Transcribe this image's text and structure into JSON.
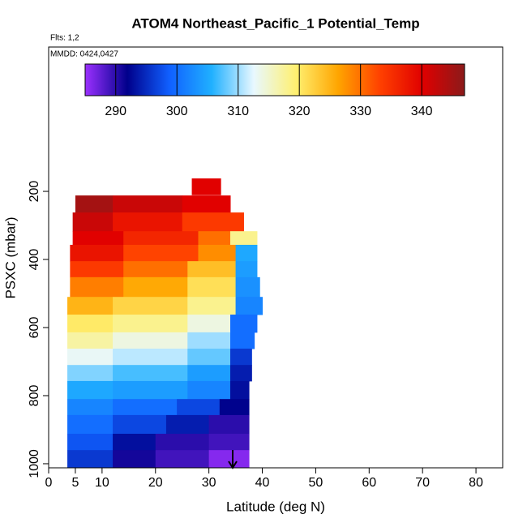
{
  "chart_data": {
    "type": "curtain",
    "title": "ATOM4 Northeast_Pacific_1 Potential_Temp",
    "flights_label": "Flts: 1,2",
    "dates_label": "MMDD: 0424,0427",
    "x_label": "Latitude (deg N)",
    "y_label": "PSXC (mbar)",
    "xlim": [
      0,
      85
    ],
    "xticks": [
      0,
      5,
      10,
      20,
      30,
      40,
      50,
      60,
      70,
      80
    ],
    "ylim": [
      1012,
      -224
    ],
    "yticks": [
      200,
      400,
      600,
      800,
      1000
    ],
    "colorbar": {
      "lim": [
        285,
        347
      ],
      "ticks": [
        290,
        300,
        310,
        320,
        330,
        340
      ],
      "colors": [
        "#9b30ff",
        "#00008b",
        "#1060ff",
        "#20b0ff",
        "#e8f8ff",
        "#fff070",
        "#ffa500",
        "#ff4000",
        "#e00000",
        "#8b1a1a"
      ]
    },
    "rows": [
      {
        "p": [
          162,
          210
        ],
        "lat": [
          26.8,
          32.2
        ],
        "theta": [
          340
        ]
      },
      {
        "p": [
          212,
          262
        ],
        "lat": [
          5,
          12,
          25,
          34
        ],
        "theta": [
          345,
          342,
          340
        ]
      },
      {
        "p": [
          262,
          317
        ],
        "lat": [
          4.5,
          12,
          25,
          36.5
        ],
        "theta": [
          342,
          338,
          334
        ]
      },
      {
        "p": [
          317,
          357
        ],
        "lat": [
          4.5,
          14,
          28,
          34,
          39
        ],
        "theta": [
          340,
          336,
          330,
          318
        ]
      },
      {
        "p": [
          357,
          405
        ],
        "lat": [
          4,
          14,
          28,
          35,
          39
        ],
        "theta": [
          338,
          333,
          328,
          305
        ]
      },
      {
        "p": [
          405,
          452
        ],
        "lat": [
          4,
          14,
          26,
          35,
          39
        ],
        "theta": [
          334,
          330,
          324,
          304
        ]
      },
      {
        "p": [
          452,
          510
        ],
        "lat": [
          4,
          14,
          26,
          35,
          39.5
        ],
        "theta": [
          329,
          326,
          321,
          303
        ]
      },
      {
        "p": [
          510,
          562
        ],
        "lat": [
          3.5,
          12,
          26,
          35,
          40
        ],
        "theta": [
          325,
          322,
          318,
          302
        ]
      },
      {
        "p": [
          562,
          614
        ],
        "lat": [
          3.5,
          12,
          26,
          34,
          39
        ],
        "theta": [
          320,
          318,
          314,
          300
        ]
      },
      {
        "p": [
          614,
          662
        ],
        "lat": [
          3.5,
          12,
          26,
          34,
          38.5
        ],
        "theta": [
          317,
          314,
          310,
          300
        ]
      },
      {
        "p": [
          662,
          710
        ],
        "lat": [
          3.5,
          12,
          26,
          34,
          38
        ],
        "theta": [
          313,
          311,
          308,
          296
        ]
      },
      {
        "p": [
          710,
          757
        ],
        "lat": [
          3.5,
          12,
          26,
          34,
          38
        ],
        "theta": [
          309,
          307,
          304,
          294
        ]
      },
      {
        "p": [
          757,
          810
        ],
        "lat": [
          3.5,
          12,
          26,
          34,
          37.5
        ],
        "theta": [
          305,
          304,
          302,
          293
        ]
      },
      {
        "p": [
          810,
          857
        ],
        "lat": [
          3.5,
          12,
          24,
          32,
          37.5
        ],
        "theta": [
          302,
          300,
          297,
          292
        ]
      },
      {
        "p": [
          857,
          912
        ],
        "lat": [
          3.5,
          12,
          22,
          30,
          37.5
        ],
        "theta": [
          300,
          297,
          294,
          290
        ]
      },
      {
        "p": [
          912,
          960
        ],
        "lat": [
          3.5,
          12,
          20,
          30,
          37.5
        ],
        "theta": [
          298,
          293,
          290,
          289
        ]
      },
      {
        "p": [
          960,
          1012
        ],
        "lat": [
          3.5,
          12,
          20,
          30,
          37.5
        ],
        "theta": [
          296,
          291,
          289,
          286
        ]
      }
    ]
  }
}
